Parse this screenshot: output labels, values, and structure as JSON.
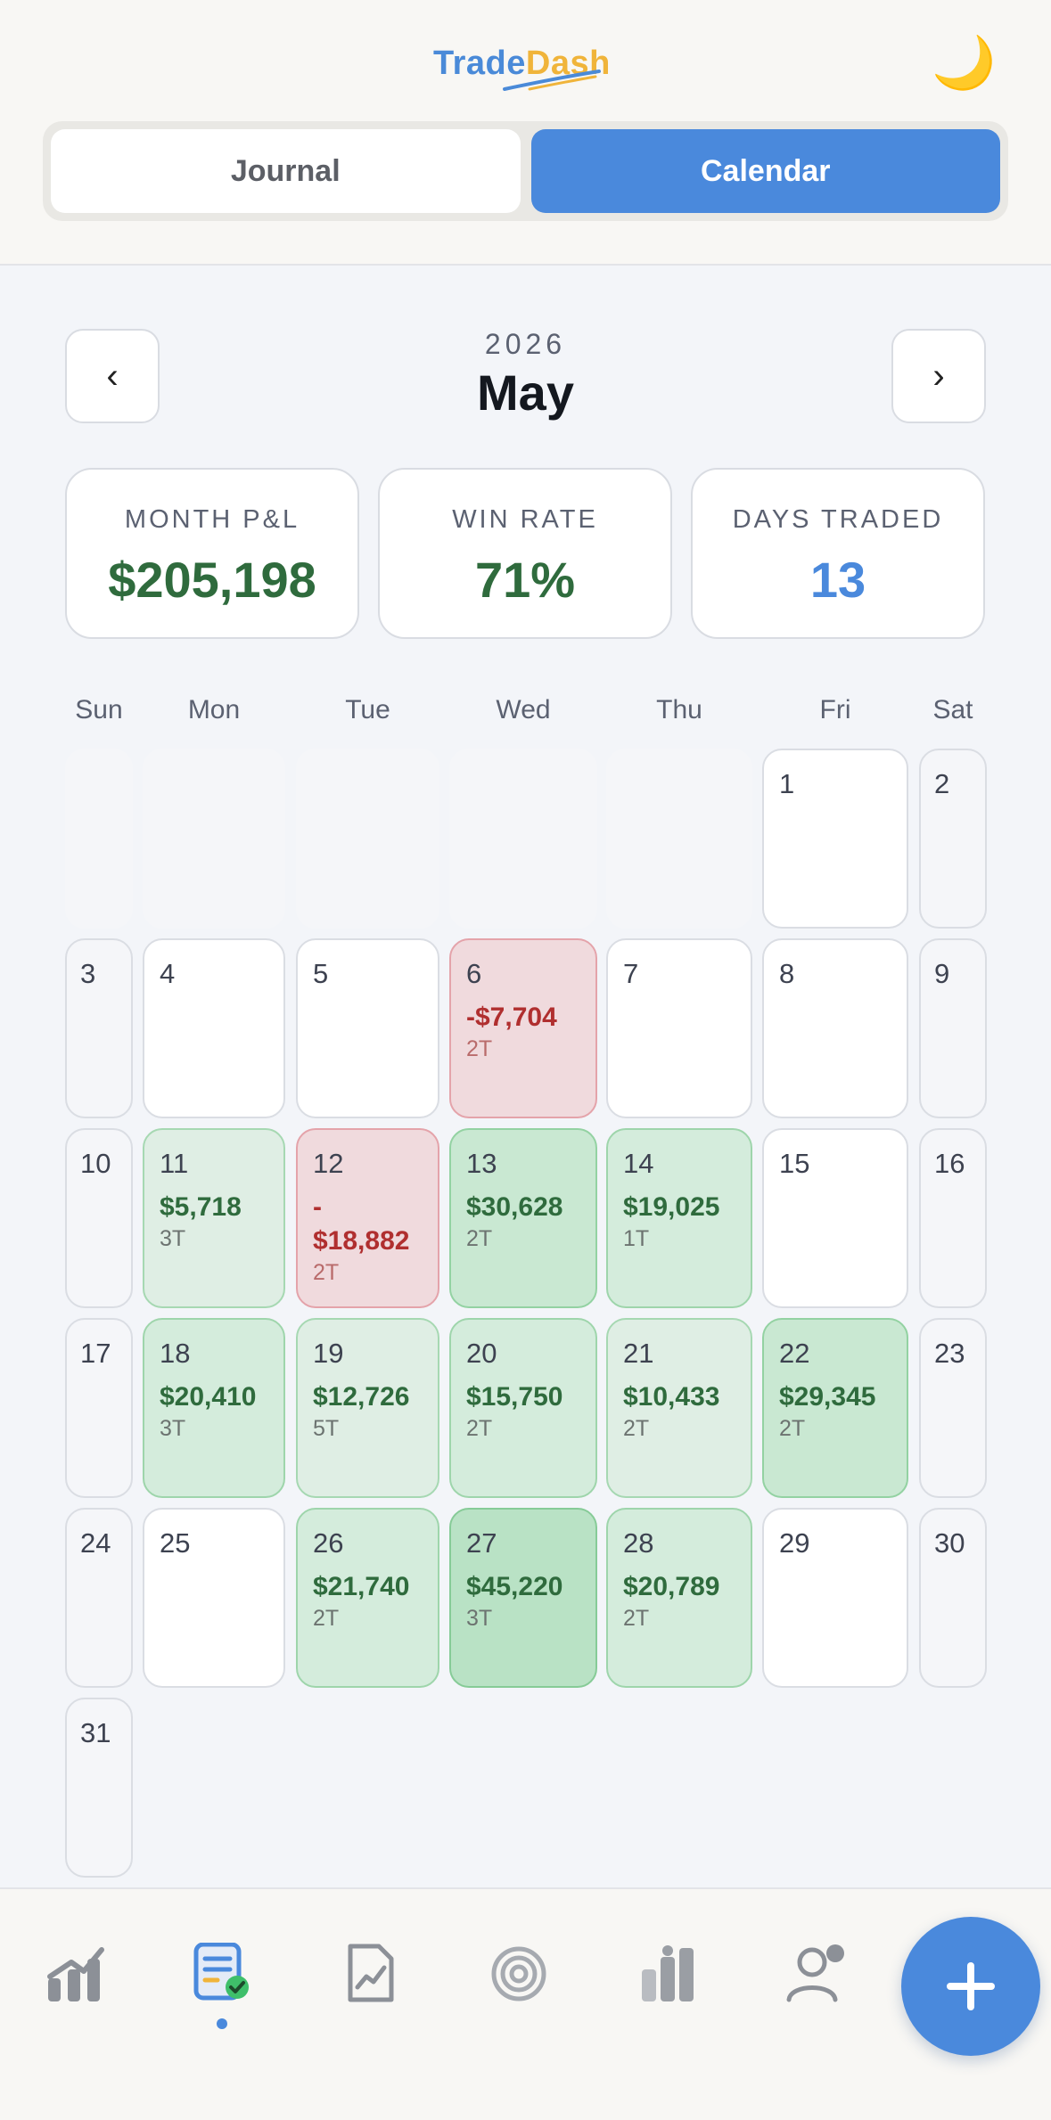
{
  "app": {
    "logo_part1": "Trade",
    "logo_part2": "Dash"
  },
  "header": {
    "theme_icon": "moon-icon",
    "theme_glyph": "🌙"
  },
  "tabs": {
    "journal": "Journal",
    "calendar": "Calendar",
    "active": "Calendar"
  },
  "month_nav": {
    "year": "2026",
    "month": "May",
    "prev": "‹",
    "next": "›"
  },
  "stats": {
    "month_pnl_label": "MONTH P&L",
    "month_pnl_value": "$205,198",
    "win_rate_label": "WIN RATE",
    "win_rate_value": "71%",
    "days_traded_label": "DAYS TRADED",
    "days_traded_value": "13"
  },
  "weekdays": [
    "Sun",
    "Mon",
    "Tue",
    "Wed",
    "Thu",
    "Fri",
    "Sat"
  ],
  "days": [
    {
      "day": "1"
    },
    {
      "day": "2"
    },
    {
      "day": "3"
    },
    {
      "day": "4"
    },
    {
      "day": "5"
    },
    {
      "day": "6",
      "pnl": "-$7,704",
      "trades": "2T"
    },
    {
      "day": "7"
    },
    {
      "day": "8"
    },
    {
      "day": "9"
    },
    {
      "day": "10"
    },
    {
      "day": "11",
      "pnl": "$5,718",
      "trades": "3T"
    },
    {
      "day": "12",
      "pnl": "-\n$18,882",
      "trades": "2T"
    },
    {
      "day": "13",
      "pnl": "$30,628",
      "trades": "2T"
    },
    {
      "day": "14",
      "pnl": "$19,025",
      "trades": "1T"
    },
    {
      "day": "15"
    },
    {
      "day": "16"
    },
    {
      "day": "17"
    },
    {
      "day": "18",
      "pnl": "$20,410",
      "trades": "3T"
    },
    {
      "day": "19",
      "pnl": "$12,726",
      "trades": "5T"
    },
    {
      "day": "20",
      "pnl": "$15,750",
      "trades": "2T"
    },
    {
      "day": "21",
      "pnl": "$10,433",
      "trades": "2T"
    },
    {
      "day": "22",
      "pnl": "$29,345",
      "trades": "2T"
    },
    {
      "day": "23"
    },
    {
      "day": "24"
    },
    {
      "day": "25"
    },
    {
      "day": "26",
      "pnl": "$21,740",
      "trades": "2T"
    },
    {
      "day": "27",
      "pnl": "$45,220",
      "trades": "3T"
    },
    {
      "day": "28",
      "pnl": "$20,789",
      "trades": "2T"
    },
    {
      "day": "29"
    },
    {
      "day": "30"
    },
    {
      "day": "31"
    }
  ],
  "bottom_nav": {
    "items": [
      "dashboard-icon",
      "journal-icon",
      "analytics-icon",
      "goals-icon",
      "reports-icon",
      "profile-icon"
    ],
    "active": "journal-icon",
    "fab": "plus-icon"
  }
}
